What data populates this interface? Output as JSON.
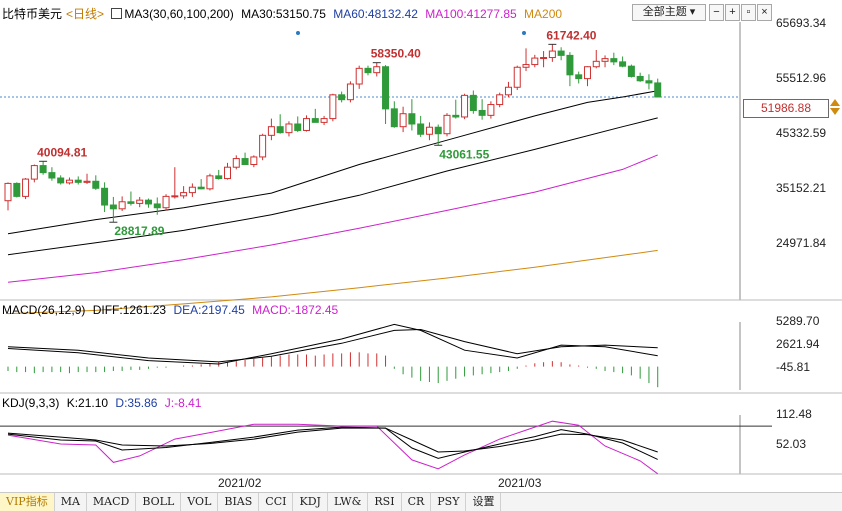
{
  "header": {
    "title": "比特币美元",
    "period": "<日线>",
    "ma_label": "MA3(30,60,100,200)",
    "ma30": "MA30:53150.75",
    "ma60": "MA60:48132.42",
    "ma100": "MA100:41277.85",
    "ma200": "MA200",
    "theme_select": "全部主题"
  },
  "colors": {
    "up": "#d03030",
    "down": "#2f9a3a",
    "ma30": "#000000",
    "ma60": "#000000",
    "ma100": "#cc22cc",
    "ma200": "#d08a10",
    "k": "#000000",
    "d": "#000000",
    "j": "#cc22cc"
  },
  "chart_data": [
    {
      "type": "candlestick",
      "price_axis_ticks": [
        "65693.34",
        "55512.96",
        "45332.59",
        "35152.21",
        "24971.84"
      ],
      "current_price": "51986.88",
      "annotations": [
        "40094.81",
        "58350.40",
        "61742.40",
        "43061.55",
        "28817.89"
      ],
      "x_labels": [
        "2021/02",
        "2021/03"
      ],
      "candles": [
        [
          32800,
          36200,
          31000,
          36000
        ],
        [
          36000,
          36200,
          33400,
          33600
        ],
        [
          33600,
          37000,
          33100,
          36800
        ],
        [
          36800,
          39500,
          36200,
          39300
        ],
        [
          39300,
          40094,
          37600,
          38000
        ],
        [
          38000,
          39000,
          36500,
          37000
        ],
        [
          37000,
          37500,
          35800,
          36100
        ],
        [
          36100,
          37100,
          35800,
          36600
        ],
        [
          36600,
          37300,
          35800,
          36200
        ],
        [
          36200,
          37800,
          35900,
          36400
        ],
        [
          36400,
          37500,
          34800,
          35100
        ],
        [
          35100,
          36200,
          30700,
          32000
        ],
        [
          32000,
          33500,
          28818,
          31300
        ],
        [
          31300,
          33600,
          30900,
          32600
        ],
        [
          32600,
          34500,
          31900,
          32300
        ],
        [
          32300,
          33500,
          31600,
          32900
        ],
        [
          32900,
          33200,
          31500,
          32200
        ],
        [
          32200,
          33400,
          30200,
          31500
        ],
        [
          31500,
          34000,
          31000,
          33600
        ],
        [
          33600,
          39000,
          33200,
          33700
        ],
        [
          33700,
          35500,
          33200,
          34300
        ],
        [
          34300,
          36000,
          33500,
          35300
        ],
        [
          35300,
          36800,
          34900,
          35000
        ],
        [
          35000,
          37800,
          34700,
          37400
        ],
        [
          37400,
          38500,
          36700,
          36900
        ],
        [
          36900,
          39800,
          36700,
          39000
        ],
        [
          39000,
          41200,
          38600,
          40600
        ],
        [
          40600,
          41700,
          39800,
          39500
        ],
        [
          39500,
          41200,
          39000,
          40900
        ],
        [
          40900,
          45200,
          40300,
          44900
        ],
        [
          44900,
          48000,
          44000,
          46500
        ],
        [
          46500,
          48800,
          45200,
          45400
        ],
        [
          45400,
          47500,
          44700,
          47000
        ],
        [
          47000,
          48400,
          45500,
          45800
        ],
        [
          45800,
          48600,
          45600,
          48000
        ],
        [
          48000,
          49800,
          47400,
          47300
        ],
        [
          47300,
          48500,
          46800,
          48000
        ],
        [
          48000,
          52600,
          47500,
          52400
        ],
        [
          52400,
          53000,
          51000,
          51500
        ],
        [
          51500,
          54900,
          51000,
          54400
        ],
        [
          54400,
          57800,
          53500,
          57300
        ],
        [
          57300,
          57800,
          56000,
          56500
        ],
        [
          56500,
          58350,
          55800,
          57600
        ],
        [
          57600,
          57900,
          47000,
          49800
        ],
        [
          49800,
          51200,
          46300,
          46500
        ],
        [
          46500,
          50200,
          45500,
          48900
        ],
        [
          48900,
          51600,
          45800,
          47000
        ],
        [
          47000,
          48500,
          44600,
          45100
        ],
        [
          45100,
          47300,
          44000,
          46400
        ],
        [
          46400,
          46900,
          43062,
          45200
        ],
        [
          45200,
          49000,
          44700,
          48600
        ],
        [
          48600,
          51500,
          48000,
          48300
        ],
        [
          48300,
          52600,
          47900,
          52300
        ],
        [
          52300,
          53200,
          48900,
          49500
        ],
        [
          49500,
          51600,
          47800,
          48600
        ],
        [
          48600,
          51200,
          48000,
          50600
        ],
        [
          50600,
          52800,
          50100,
          52400
        ],
        [
          52400,
          54800,
          52000,
          53800
        ],
        [
          53800,
          57800,
          53300,
          57500
        ],
        [
          57500,
          61000,
          56800,
          58000
        ],
        [
          58000,
          59800,
          57500,
          59200
        ],
        [
          59200,
          60500,
          57500,
          59300
        ],
        [
          59300,
          61742,
          58500,
          60500
        ],
        [
          60500,
          61200,
          58800,
          59700
        ],
        [
          59700,
          60300,
          54000,
          56100
        ],
        [
          56100,
          56700,
          54500,
          55400
        ],
        [
          55400,
          57700,
          54000,
          57600
        ],
        [
          57600,
          60700,
          57300,
          58600
        ],
        [
          58600,
          59700,
          57500,
          59100
        ],
        [
          59100,
          60200,
          57900,
          58500
        ],
        [
          58500,
          59500,
          57500,
          57700
        ],
        [
          57700,
          58000,
          55600,
          55800
        ],
        [
          55800,
          56500,
          54800,
          55000
        ],
        [
          55000,
          56200,
          53400,
          54600
        ],
        [
          54600,
          55400,
          51900,
          52000
        ]
      ],
      "ma30": [
        [
          0,
          26700
        ],
        [
          10,
          29300
        ],
        [
          20,
          31500
        ],
        [
          30,
          34200
        ],
        [
          40,
          39500
        ],
        [
          50,
          44000
        ],
        [
          60,
          48500
        ],
        [
          66,
          51000
        ],
        [
          70,
          52000
        ],
        [
          74,
          53150
        ]
      ],
      "ma60": [
        [
          0,
          22800
        ],
        [
          10,
          25000
        ],
        [
          20,
          27300
        ],
        [
          30,
          30200
        ],
        [
          40,
          33800
        ],
        [
          50,
          38300
        ],
        [
          60,
          42300
        ],
        [
          70,
          46500
        ],
        [
          74,
          48132
        ]
      ],
      "ma100": [
        [
          0,
          17700
        ],
        [
          10,
          19500
        ],
        [
          20,
          21900
        ],
        [
          30,
          24600
        ],
        [
          40,
          27700
        ],
        [
          50,
          31000
        ],
        [
          60,
          34400
        ],
        [
          70,
          38600
        ],
        [
          74,
          41278
        ]
      ],
      "ma200": [
        [
          0,
          11900
        ],
        [
          10,
          12500
        ],
        [
          20,
          13700
        ],
        [
          30,
          15000
        ],
        [
          40,
          16700
        ],
        [
          50,
          18500
        ],
        [
          60,
          20500
        ],
        [
          70,
          22700
        ],
        [
          74,
          23600
        ]
      ]
    },
    {
      "type": "macd",
      "label": "MACD(26,12,9)",
      "diff_label": "DIFF:1261.23",
      "dea_label": "DEA:2197.45",
      "macd_label": "MACD:-1872.45",
      "y_ticks": [
        "5289.70",
        "2621.94",
        "-45.81"
      ],
      "diff": [
        [
          0,
          2100
        ],
        [
          8,
          1600
        ],
        [
          16,
          700
        ],
        [
          24,
          300
        ],
        [
          30,
          1500
        ],
        [
          38,
          3200
        ],
        [
          44,
          4900
        ],
        [
          47,
          4200
        ],
        [
          52,
          1900
        ],
        [
          58,
          1000
        ],
        [
          63,
          2500
        ],
        [
          68,
          2300
        ],
        [
          74,
          1261
        ]
      ],
      "dea": [
        [
          0,
          2300
        ],
        [
          8,
          1900
        ],
        [
          16,
          1000
        ],
        [
          24,
          550
        ],
        [
          30,
          1200
        ],
        [
          38,
          2700
        ],
        [
          44,
          4200
        ],
        [
          47,
          4300
        ],
        [
          52,
          2900
        ],
        [
          58,
          1500
        ],
        [
          63,
          2300
        ],
        [
          68,
          2500
        ],
        [
          74,
          2197
        ]
      ],
      "bars": [
        -400,
        -500,
        -500,
        -600,
        -500,
        -500,
        -500,
        -600,
        -500,
        -500,
        -500,
        -500,
        -400,
        -400,
        -300,
        -300,
        -200,
        -100,
        -100,
        0,
        100,
        100,
        200,
        300,
        400,
        400,
        500,
        600,
        700,
        800,
        900,
        1000,
        1100,
        1100,
        1100,
        1000,
        1100,
        1200,
        1200,
        1300,
        1300,
        1200,
        1200,
        1000,
        -200,
        -700,
        -1000,
        -1300,
        -1400,
        -1500,
        -1300,
        -1100,
        -900,
        -800,
        -700,
        -600,
        -500,
        -400,
        -200,
        100,
        300,
        400,
        500,
        400,
        200,
        100,
        -100,
        -200,
        -400,
        -500,
        -600,
        -800,
        -1100,
        -1500,
        -1872
      ]
    },
    {
      "type": "kdj",
      "label": "KDJ(9,3,3)",
      "k_label": "K:21.10",
      "d_label": "D:35.86",
      "j_label": "J:-8.41",
      "y_ticks": [
        "112.48",
        "52.03"
      ],
      "k": [
        [
          0,
          72
        ],
        [
          6,
          60
        ],
        [
          10,
          58
        ],
        [
          13,
          40
        ],
        [
          18,
          45
        ],
        [
          23,
          55
        ],
        [
          28,
          66
        ],
        [
          33,
          80
        ],
        [
          38,
          86
        ],
        [
          43,
          84
        ],
        [
          46,
          44
        ],
        [
          49,
          23
        ],
        [
          52,
          36
        ],
        [
          56,
          52
        ],
        [
          60,
          67
        ],
        [
          63,
          81
        ],
        [
          66,
          72
        ],
        [
          70,
          54
        ],
        [
          74,
          21
        ]
      ],
      "d": [
        [
          0,
          74
        ],
        [
          6,
          66
        ],
        [
          10,
          60
        ],
        [
          13,
          50
        ],
        [
          18,
          48
        ],
        [
          23,
          53
        ],
        [
          28,
          62
        ],
        [
          33,
          76
        ],
        [
          38,
          84
        ],
        [
          43,
          84
        ],
        [
          46,
          60
        ],
        [
          49,
          36
        ],
        [
          52,
          38
        ],
        [
          56,
          47
        ],
        [
          60,
          60
        ],
        [
          63,
          72
        ],
        [
          66,
          71
        ],
        [
          70,
          60
        ],
        [
          74,
          36
        ]
      ],
      "j": [
        [
          0,
          70
        ],
        [
          6,
          52
        ],
        [
          10,
          50
        ],
        [
          12,
          15
        ],
        [
          15,
          28
        ],
        [
          19,
          62
        ],
        [
          23,
          75
        ],
        [
          28,
          92
        ],
        [
          33,
          92
        ],
        [
          38,
          88
        ],
        [
          42,
          88
        ],
        [
          46,
          20
        ],
        [
          49,
          2
        ],
        [
          52,
          30
        ],
        [
          56,
          62
        ],
        [
          59,
          80
        ],
        [
          62,
          98
        ],
        [
          65,
          90
        ],
        [
          68,
          48
        ],
        [
          72,
          18
        ],
        [
          74,
          -8
        ]
      ]
    }
  ],
  "tabs": [
    "VIP指标",
    "MA",
    "MACD",
    "BOLL",
    "VOL",
    "BIAS",
    "CCI",
    "KDJ",
    "LW&",
    "RSI",
    "CR",
    "PSY",
    "设置"
  ]
}
